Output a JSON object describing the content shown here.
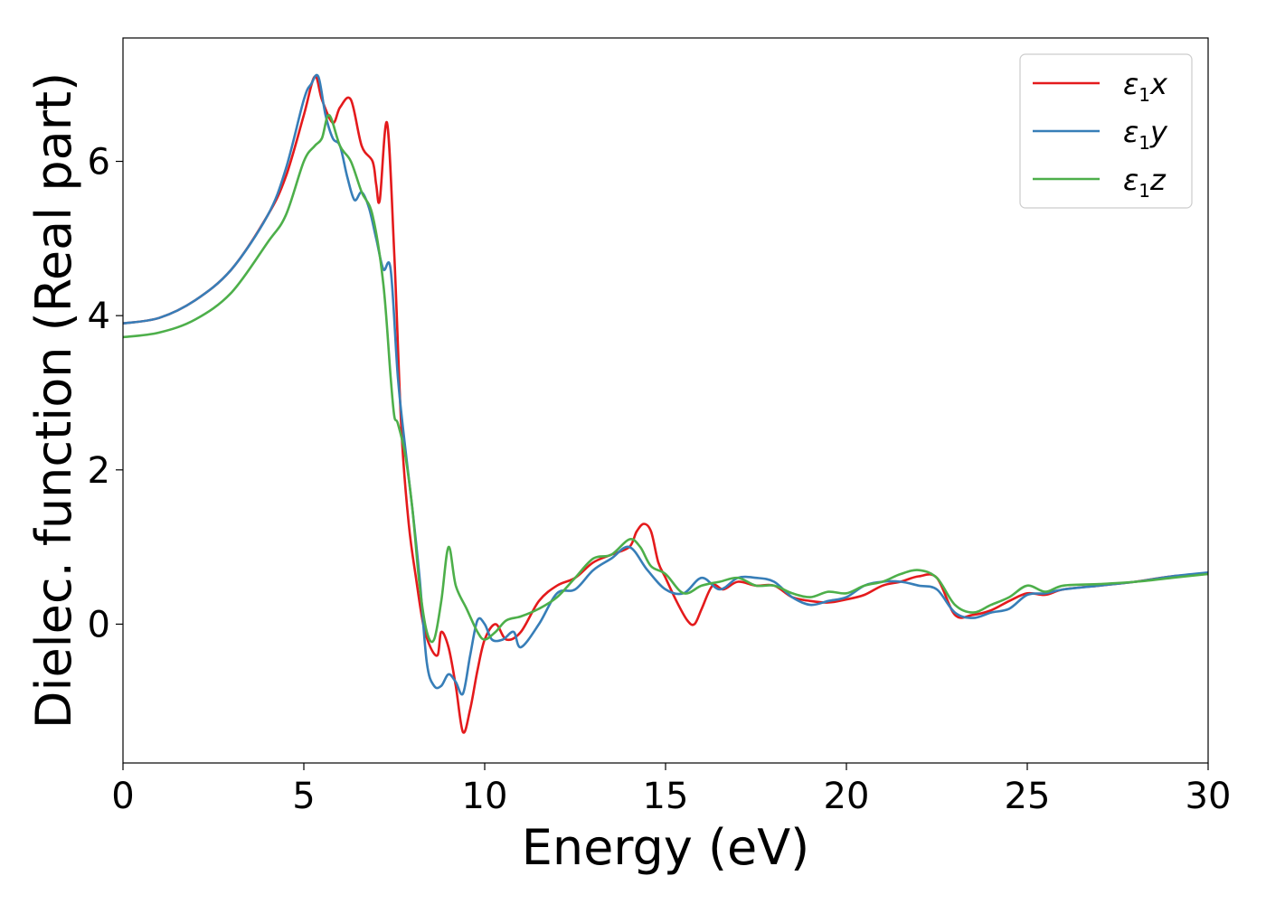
{
  "chart_data": {
    "type": "line",
    "xlabel": "Energy (eV)",
    "ylabel": "Dielec. function (Real part)",
    "xlim": [
      0,
      30
    ],
    "ylim": [
      -1.8,
      7.6
    ],
    "xticks": [
      "0",
      "5",
      "10",
      "15",
      "20",
      "25",
      "30"
    ],
    "yticks": [
      "0",
      "2",
      "4",
      "6"
    ],
    "grid": false,
    "legend_position": "top-right",
    "series": [
      {
        "name": "ε₁x",
        "legend_base": "ε",
        "legend_sub": "1",
        "legend_var": "x",
        "color": "#e41a1c",
        "x": [
          0,
          1,
          2,
          3,
          4,
          4.5,
          5.0,
          5.3,
          5.5,
          5.8,
          6.0,
          6.3,
          6.6,
          6.9,
          7.0,
          7.1,
          7.3,
          7.5,
          7.7,
          7.9,
          8.1,
          8.3,
          8.5,
          8.7,
          8.8,
          9.0,
          9.2,
          9.4,
          9.6,
          9.8,
          10.0,
          10.3,
          10.6,
          11.0,
          11.5,
          12.0,
          12.5,
          13.0,
          13.5,
          14.0,
          14.2,
          14.4,
          14.6,
          14.8,
          15.0,
          15.3,
          15.6,
          15.8,
          16.0,
          16.3,
          16.6,
          17.0,
          17.5,
          18.0,
          18.5,
          19.0,
          19.5,
          20.0,
          20.5,
          21.0,
          21.5,
          22.0,
          22.5,
          23.0,
          23.5,
          24.0,
          24.5,
          25.0,
          25.5,
          26.0,
          27.0,
          28.0,
          29.0,
          30.0
        ],
        "y": [
          3.9,
          3.97,
          4.2,
          4.6,
          5.3,
          5.8,
          6.6,
          7.1,
          6.8,
          6.5,
          6.7,
          6.8,
          6.2,
          6.0,
          5.7,
          5.5,
          6.5,
          4.8,
          2.5,
          1.3,
          0.6,
          0.0,
          -0.3,
          -0.4,
          -0.1,
          -0.3,
          -0.8,
          -1.4,
          -1.1,
          -0.6,
          -0.2,
          0.0,
          -0.2,
          -0.1,
          0.3,
          0.5,
          0.6,
          0.8,
          0.9,
          1.0,
          1.2,
          1.3,
          1.2,
          0.8,
          0.6,
          0.3,
          0.05,
          0.0,
          0.2,
          0.5,
          0.45,
          0.55,
          0.5,
          0.5,
          0.35,
          0.3,
          0.28,
          0.32,
          0.38,
          0.5,
          0.55,
          0.62,
          0.6,
          0.12,
          0.12,
          0.18,
          0.3,
          0.4,
          0.38,
          0.45,
          0.5,
          0.55,
          0.62,
          0.65
        ]
      },
      {
        "name": "ε₁y",
        "legend_base": "ε",
        "legend_sub": "1",
        "legend_var": "y",
        "color": "#377eb8",
        "x": [
          0,
          1,
          2,
          3,
          4,
          4.5,
          5.0,
          5.2,
          5.4,
          5.6,
          5.8,
          6.0,
          6.2,
          6.4,
          6.6,
          6.8,
          7.0,
          7.2,
          7.4,
          7.6,
          7.8,
          8.0,
          8.2,
          8.4,
          8.6,
          8.8,
          9.0,
          9.2,
          9.4,
          9.6,
          9.8,
          10.0,
          10.2,
          10.5,
          10.8,
          11.0,
          11.5,
          12.0,
          12.5,
          13.0,
          13.5,
          14.0,
          14.5,
          15.0,
          15.5,
          16.0,
          16.5,
          17.0,
          17.5,
          18.0,
          18.5,
          19.0,
          19.5,
          20.0,
          20.5,
          21.0,
          21.5,
          22.0,
          22.5,
          23.0,
          23.5,
          24.0,
          24.5,
          25.0,
          25.5,
          26.0,
          27.0,
          28.0,
          29.0,
          30.0
        ],
        "y": [
          3.9,
          3.97,
          4.2,
          4.6,
          5.3,
          5.9,
          6.8,
          7.0,
          7.1,
          6.6,
          6.3,
          6.2,
          5.8,
          5.5,
          5.6,
          5.4,
          5.0,
          4.6,
          4.6,
          3.2,
          2.3,
          1.5,
          0.6,
          -0.5,
          -0.8,
          -0.8,
          -0.65,
          -0.75,
          -0.9,
          -0.4,
          0.05,
          0.0,
          -0.2,
          -0.2,
          -0.1,
          -0.3,
          0.0,
          0.4,
          0.45,
          0.7,
          0.85,
          1.0,
          0.7,
          0.45,
          0.4,
          0.6,
          0.45,
          0.6,
          0.6,
          0.55,
          0.35,
          0.25,
          0.3,
          0.35,
          0.5,
          0.55,
          0.55,
          0.5,
          0.45,
          0.15,
          0.08,
          0.15,
          0.2,
          0.38,
          0.4,
          0.45,
          0.5,
          0.55,
          0.62,
          0.67
        ]
      },
      {
        "name": "ε₁z",
        "legend_base": "ε",
        "legend_sub": "1",
        "legend_var": "z",
        "color": "#4daf4a",
        "x": [
          0,
          1,
          2,
          3,
          4,
          4.5,
          5.0,
          5.3,
          5.5,
          5.7,
          6.0,
          6.3,
          6.6,
          6.9,
          7.2,
          7.4,
          7.5,
          7.6,
          7.8,
          8.0,
          8.2,
          8.4,
          8.6,
          8.8,
          9.0,
          9.2,
          9.5,
          9.8,
          10.0,
          10.3,
          10.6,
          11.0,
          11.5,
          12.0,
          12.5,
          13.0,
          13.5,
          14.0,
          14.3,
          14.6,
          15.0,
          15.5,
          16.0,
          16.5,
          17.0,
          17.5,
          18.0,
          18.5,
          19.0,
          19.5,
          20.0,
          20.5,
          21.0,
          21.5,
          22.0,
          22.5,
          23.0,
          23.5,
          24.0,
          24.5,
          25.0,
          25.5,
          26.0,
          27.0,
          28.0,
          29.0,
          30.0
        ],
        "y": [
          3.72,
          3.78,
          3.95,
          4.3,
          4.95,
          5.3,
          6.0,
          6.2,
          6.3,
          6.6,
          6.2,
          6.0,
          5.6,
          5.3,
          4.4,
          3.2,
          2.7,
          2.6,
          2.2,
          1.5,
          0.5,
          -0.1,
          -0.2,
          0.3,
          1.0,
          0.5,
          0.2,
          -0.1,
          -0.2,
          -0.1,
          0.05,
          0.1,
          0.2,
          0.35,
          0.6,
          0.85,
          0.9,
          1.1,
          1.0,
          0.75,
          0.65,
          0.4,
          0.5,
          0.55,
          0.6,
          0.5,
          0.5,
          0.4,
          0.35,
          0.42,
          0.4,
          0.5,
          0.55,
          0.65,
          0.7,
          0.6,
          0.25,
          0.15,
          0.25,
          0.35,
          0.5,
          0.42,
          0.5,
          0.52,
          0.55,
          0.6,
          0.65
        ]
      }
    ]
  }
}
